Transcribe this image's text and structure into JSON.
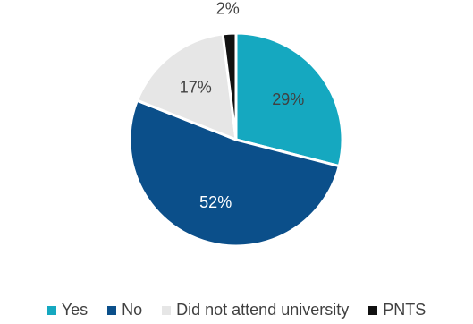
{
  "chart_data": {
    "type": "pie",
    "title": "",
    "slices": [
      {
        "label": "Yes",
        "value": 29,
        "display": "29%",
        "color": "#15a8c0"
      },
      {
        "label": "No",
        "value": 52,
        "display": "52%",
        "color": "#0b4f8a"
      },
      {
        "label": "Did not attend university",
        "value": 17,
        "display": "17%",
        "color": "#e6e6e6"
      },
      {
        "label": "PNTS",
        "value": 2,
        "display": "2%",
        "color": "#111111"
      }
    ],
    "start_angle_deg": 0,
    "direction": "clockwise",
    "legend_position": "bottom"
  }
}
